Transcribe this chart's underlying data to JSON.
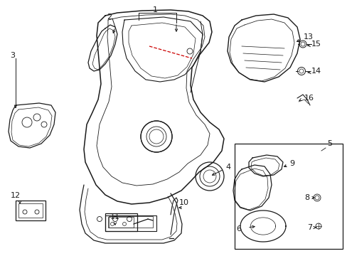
{
  "bg_color": "#ffffff",
  "lc": "#1a1a1a",
  "rc": "#cc0000",
  "figsize": [
    4.89,
    3.6
  ],
  "dpi": 100,
  "xlim": [
    0,
    489
  ],
  "ylim": [
    0,
    360
  ]
}
